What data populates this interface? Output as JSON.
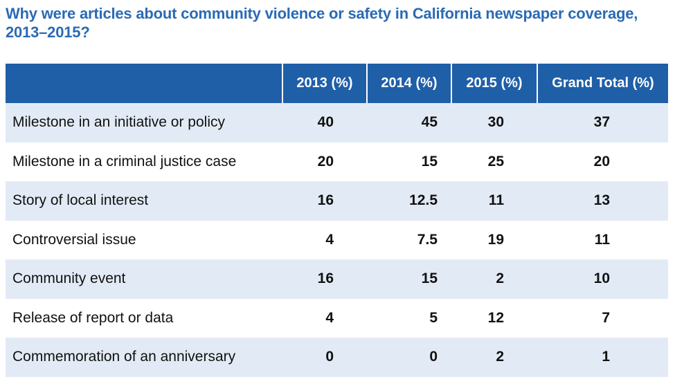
{
  "title": "Why were articles about community violence or safety in California newspaper coverage, 2013–2015?",
  "chart_data": {
    "type": "table",
    "title": "Why were articles about community violence or safety in California newspaper coverage, 2013–2015?",
    "columns": [
      "",
      "2013 (%)",
      "2014 (%)",
      "2015 (%)",
      "Grand Total (%)"
    ],
    "rows": [
      {
        "label": "Milestone in an initiative or policy",
        "values": [
          "40",
          "45",
          "30",
          "37"
        ]
      },
      {
        "label": "Milestone in a criminal justice case",
        "values": [
          "20",
          "15",
          "25",
          "20"
        ]
      },
      {
        "label": "Story of local interest",
        "values": [
          "16",
          "12.5",
          "11",
          "13"
        ]
      },
      {
        "label": "Controversial issue",
        "values": [
          "4",
          "7.5",
          "19",
          "11"
        ]
      },
      {
        "label": "Community event",
        "values": [
          "16",
          "15",
          "2",
          "10"
        ]
      },
      {
        "label": "Release of report or data",
        "values": [
          "4",
          "5",
          "12",
          "7"
        ]
      },
      {
        "label": "Commemoration of an anniversary",
        "values": [
          "0",
          "0",
          "2",
          "1"
        ]
      }
    ]
  },
  "colors": {
    "title": "#2a6ab4",
    "header_bg": "#1f5fa8",
    "header_text": "#ffffff",
    "row_shade": "#e2ebf5",
    "row_plain": "#ffffff"
  }
}
